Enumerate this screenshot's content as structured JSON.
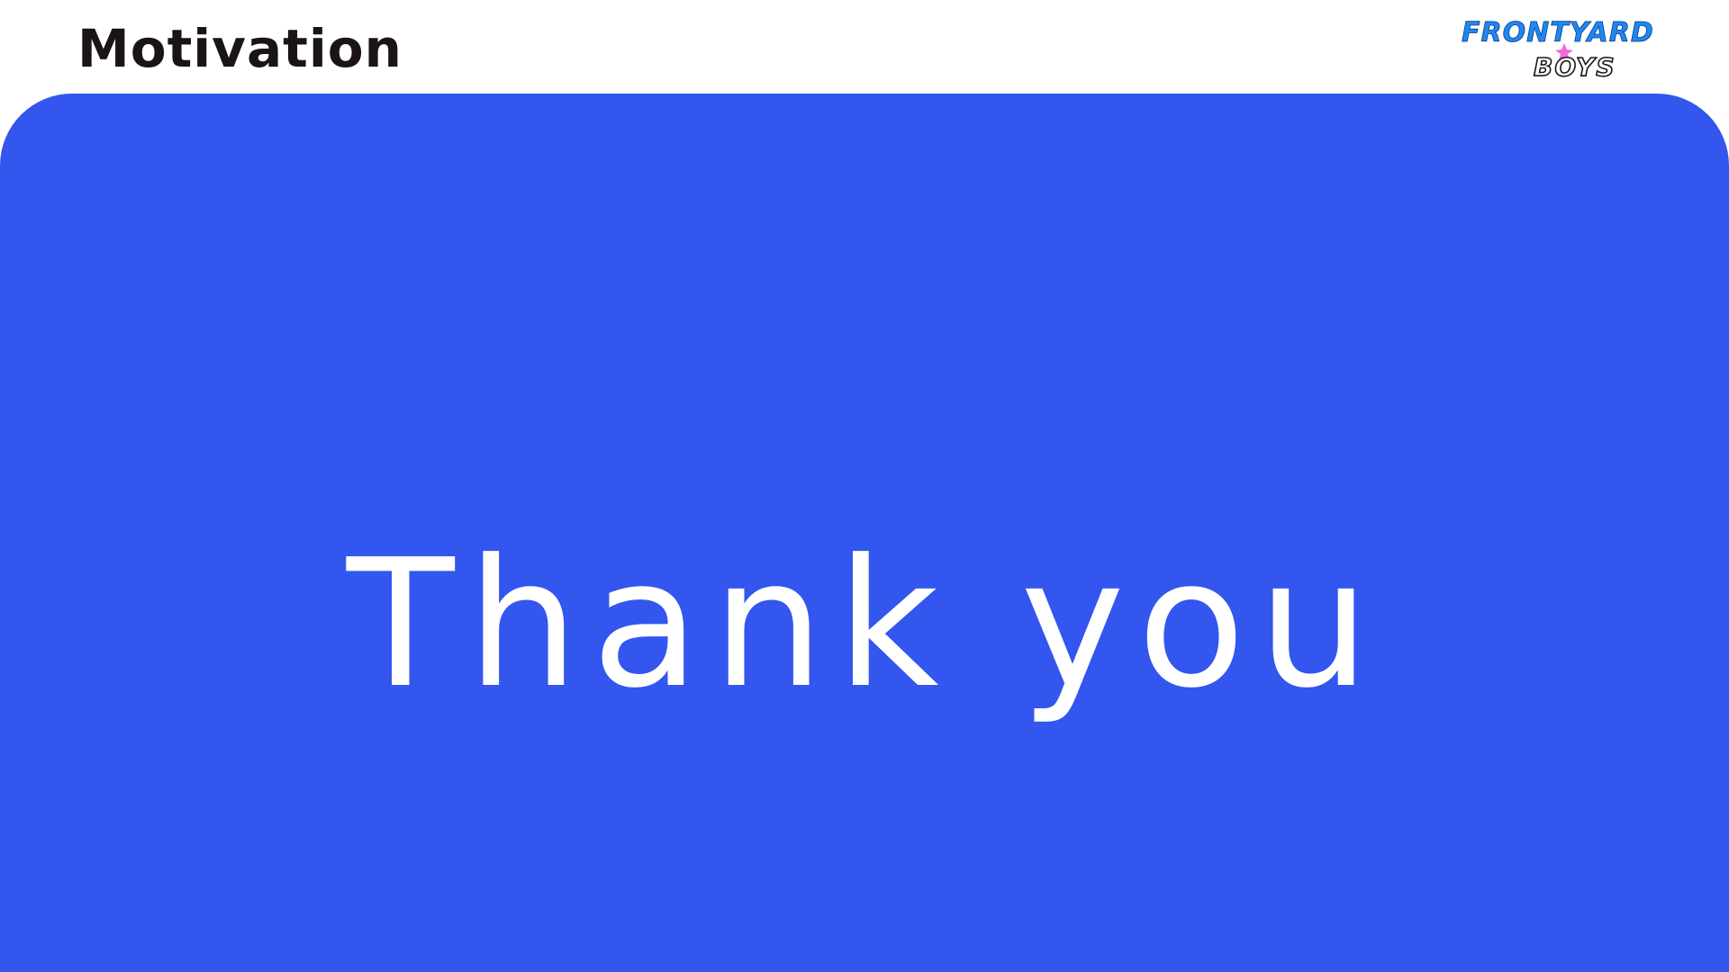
{
  "header": {
    "title": "Motivation"
  },
  "logo": {
    "line1": "FRONTYARD",
    "line2": "BOYS",
    "color_primary": "#1e88f0",
    "color_secondary": "#1a1416",
    "color_accent": "#f06ad8"
  },
  "main": {
    "message": "Thank you",
    "background_color": "#3256ee",
    "text_color": "#ffffff"
  }
}
